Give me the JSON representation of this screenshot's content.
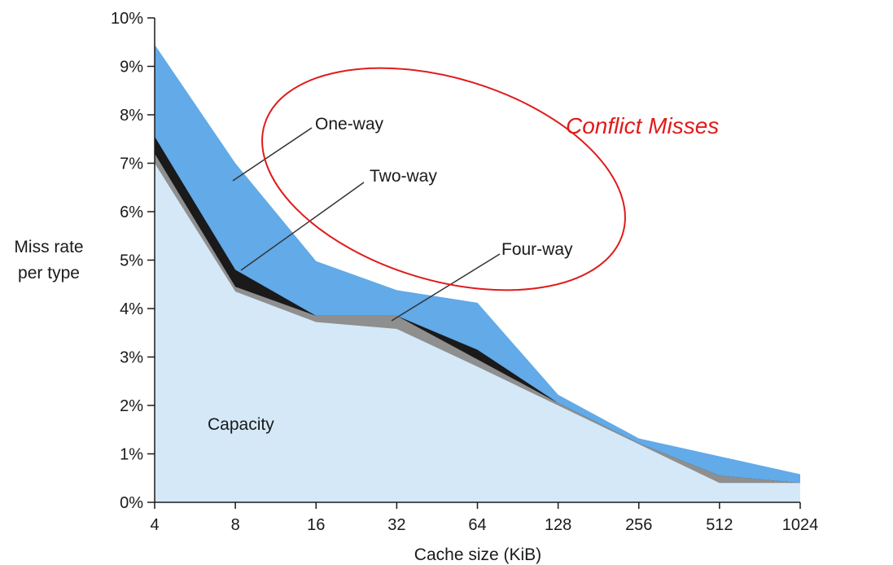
{
  "chart_data": {
    "type": "area",
    "xlabel": "Cache size (KiB)",
    "ylabel_lines": [
      "Miss rate",
      "per type"
    ],
    "categories": [
      "4",
      "8",
      "16",
      "32",
      "64",
      "128",
      "256",
      "512",
      "1024"
    ],
    "ylim": [
      0,
      10
    ],
    "y_ticks": [
      "0%",
      "1%",
      "2%",
      "3%",
      "4%",
      "5%",
      "6%",
      "7%",
      "8%",
      "9%",
      "10%"
    ],
    "grid": false,
    "stacked": true,
    "series": [
      {
        "name": "Capacity",
        "color": "#d4e8f7",
        "values": [
          7.0,
          4.35,
          3.72,
          3.58,
          2.8,
          2.0,
          1.2,
          0.4,
          0.4
        ]
      },
      {
        "name": "Four-way",
        "color": "#8f8f8f",
        "values": [
          7.2,
          4.45,
          3.85,
          3.85,
          2.95,
          2.05,
          1.22,
          0.55,
          0.4
        ]
      },
      {
        "name": "Two-way",
        "color": "#1a1a1a",
        "values": [
          7.55,
          4.8,
          3.85,
          3.85,
          3.15,
          2.05,
          1.22,
          0.55,
          0.4
        ]
      },
      {
        "name": "One-way",
        "color": "#62aae8",
        "values": [
          9.45,
          7.0,
          4.98,
          4.38,
          4.12,
          2.22,
          1.32,
          0.95,
          0.58
        ]
      }
    ],
    "annotations": [
      {
        "text": "One-way"
      },
      {
        "text": "Two-way"
      },
      {
        "text": "Four-way"
      },
      {
        "text": "Capacity"
      },
      {
        "text": "Conflict Misses",
        "color": "#e01b1b"
      }
    ]
  }
}
